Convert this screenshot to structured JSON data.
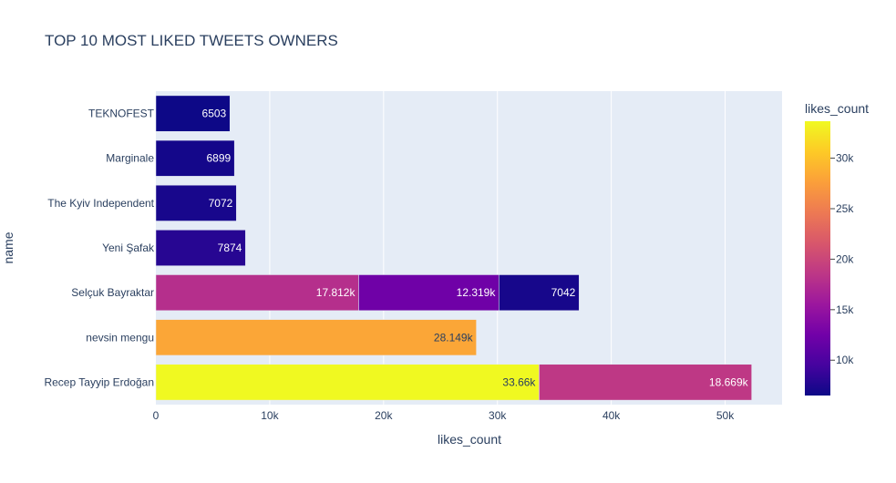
{
  "chart_data": {
    "type": "bar",
    "orientation": "horizontal",
    "barmode": "stack",
    "title": "TOP 10 MOST LIKED TWEETS OWNERS",
    "xlabel": "likes_count",
    "ylabel": "name",
    "xlim": [
      0,
      55000
    ],
    "x_ticks": [
      {
        "value": 0,
        "label": "0"
      },
      {
        "value": 10000,
        "label": "10k"
      },
      {
        "value": 20000,
        "label": "20k"
      },
      {
        "value": 30000,
        "label": "30k"
      },
      {
        "value": 40000,
        "label": "40k"
      },
      {
        "value": 50000,
        "label": "50k"
      }
    ],
    "categories": [
      "TEKNOFEST",
      "Marginale",
      "The Kyiv Independent",
      "Yeni Şafak",
      "Selçuk Bayraktar",
      "nevsin mengu",
      "Recep Tayyip Erdoğan"
    ],
    "segments": [
      {
        "category": "TEKNOFEST",
        "value": 6503,
        "label": "6503"
      },
      {
        "category": "Marginale",
        "value": 6899,
        "label": "6899"
      },
      {
        "category": "The Kyiv Independent",
        "value": 7072,
        "label": "7072"
      },
      {
        "category": "Yeni Şafak",
        "value": 7874,
        "label": "7874"
      },
      {
        "category": "Selçuk Bayraktar",
        "value": 17812,
        "label": "17.812k"
      },
      {
        "category": "Selçuk Bayraktar",
        "value": 12319,
        "label": "12.319k"
      },
      {
        "category": "Selçuk Bayraktar",
        "value": 7042,
        "label": "7042"
      },
      {
        "category": "nevsin mengu",
        "value": 28149,
        "label": "28.149k"
      },
      {
        "category": "Recep Tayyip Erdoğan",
        "value": 33660,
        "label": "33.66k"
      },
      {
        "category": "Recep Tayyip Erdoğan",
        "value": 18669,
        "label": "18.669k"
      }
    ],
    "colorscale": "plasma",
    "colorbar": {
      "title": "likes_count",
      "range": [
        6503,
        33660
      ],
      "ticks": [
        {
          "value": 10000,
          "label": "10k"
        },
        {
          "value": 15000,
          "label": "15k"
        },
        {
          "value": 20000,
          "label": "20k"
        },
        {
          "value": 25000,
          "label": "25k"
        },
        {
          "value": 30000,
          "label": "30k"
        }
      ]
    },
    "grid": true,
    "legend": "colorbar-right",
    "colors": {
      "plot_background": "#e5ecf6",
      "gridline": "#ffffff",
      "text": "#2a3f5f",
      "label_light": "#ffffff",
      "label_dark": "#2a3f5f"
    }
  }
}
